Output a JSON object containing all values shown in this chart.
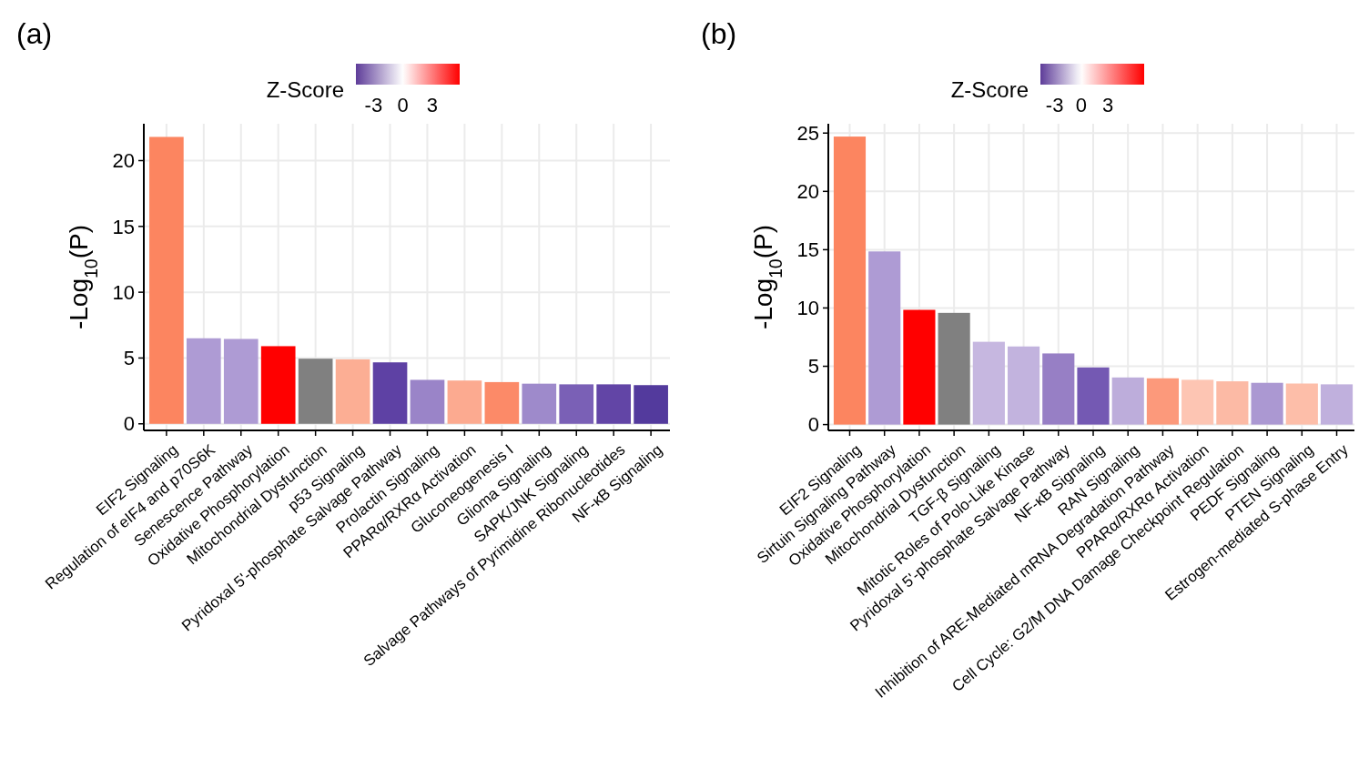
{
  "chart_data": [
    {
      "type": "bar",
      "title": "(a)",
      "ylabel": "-Log$_{10}$(P)",
      "clabel": "Z-Score",
      "clim": [
        -4.8,
        5.8
      ],
      "cticks": [
        -3,
        0,
        3
      ],
      "grid": true,
      "categories": [
        "EIF2 Signaling",
        "Regulation of eIF4 and p70S6K",
        "Senescence Pathway",
        "Oxidative Phosphorylation",
        "Mitochondrial Dysfunction",
        "p53 Signaling",
        "Pyridoxal 5'-phosphate Salvage Pathway",
        "Prolactin Signaling",
        "PPARα/RXRα Activation",
        "Gluconeogenesis I",
        "Glioma Signaling",
        "SAPK/JNK Signaling",
        "Salvage Pathways of Pyrimidine Ribonucleotides",
        "NF-κB Signaling"
      ],
      "values": [
        21.8,
        6.5,
        6.45,
        5.9,
        4.95,
        4.9,
        4.67,
        3.34,
        3.29,
        3.17,
        3.05,
        3.0,
        3.0,
        2.94
      ],
      "colors": [
        "#fc8560",
        "#ae9bd4",
        "#ae9bd4",
        "#ff0000",
        "#808080",
        "#fcae94",
        "#5e41a4",
        "#9a84c8",
        "#fcaa90",
        "#fc8a68",
        "#9e8acb",
        "#7a60b6",
        "#6245a6",
        "#533a9d"
      ],
      "ylim": [
        -0.5,
        22.8
      ],
      "yticks": [
        0,
        5,
        10,
        15,
        20
      ]
    },
    {
      "type": "bar",
      "title": "(b)",
      "ylabel": "-Log$_{10}$(P)",
      "clabel": "Z-Score",
      "clim": [
        -4.6,
        7.1
      ],
      "cticks": [
        -3,
        0,
        3
      ],
      "grid": true,
      "categories": [
        "EIF2 Signaling",
        "Sirtuin Signaling Pathway",
        "Oxidative Phosphorylation",
        "Mitochondrial Dysfunction",
        "TGF-β Signaling",
        "Mitotic Roles of Polo-Like Kinase",
        "Pyridoxal 5'-phosphate Salvage Pathway",
        "NF-κB Signaling",
        "RAN Signaling",
        "Inhibition of ARE-Mediated mRNA Degradation Pathway",
        "PPARα/RXRα Activation",
        "Cell Cycle: G2/M DNA Damage Checkpoint Regulation",
        "PEDF Signaling",
        "PTEN Signaling",
        "Estrogen-mediated S-phase Entry"
      ],
      "values": [
        24.7,
        14.85,
        9.84,
        9.58,
        7.1,
        6.7,
        6.1,
        4.9,
        4.04,
        3.97,
        3.84,
        3.71,
        3.58,
        3.52,
        3.45
      ],
      "colors": [
        "#fc8560",
        "#ae9bd4",
        "#ff0000",
        "#808080",
        "#c6b7e0",
        "#c2b3de",
        "#977fc5",
        "#7459b3",
        "#bdaddb",
        "#fc997b",
        "#fdc5b3",
        "#fcbaa5",
        "#ab98d2",
        "#fdbea9",
        "#c0b0dd"
      ],
      "ylim": [
        -0.5,
        25.8
      ],
      "yticks": [
        0,
        5,
        10,
        15,
        20,
        25
      ]
    }
  ]
}
